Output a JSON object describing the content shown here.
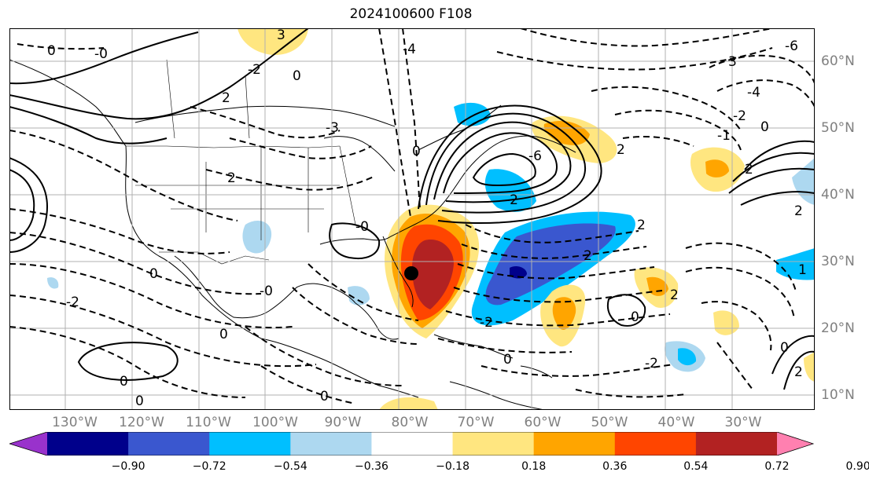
{
  "title": "2024100600 F108",
  "lon_labels": [
    "130°W",
    "120°W",
    "110°W",
    "100°W",
    "90°W",
    "80°W",
    "70°W",
    "60°W",
    "50°W",
    "40°W",
    "30°W"
  ],
  "lat_labels": [
    "60°N",
    "50°N",
    "40°N",
    "30°N",
    "20°N",
    "10°N"
  ],
  "colorbar": {
    "colors": [
      "#9932cc",
      "#00008b",
      "#3a57cf",
      "#00bfff",
      "#add8f0",
      "#ffffff",
      "#ffe680",
      "#ffa500",
      "#ff4500",
      "#b22222",
      "#ff80b0"
    ],
    "ticks": [
      "−0.90",
      "−0.72",
      "−0.54",
      "−0.36",
      "−0.18",
      "0.18",
      "0.36",
      "0.54",
      "0.72",
      "0.90"
    ]
  },
  "contour_labels": [
    "0",
    "-0",
    "-2",
    "2",
    "-3",
    "3",
    "-4",
    "-6",
    "-1",
    "1"
  ],
  "storm_marker": {
    "lon": "80°W",
    "lat": "28°N"
  }
}
